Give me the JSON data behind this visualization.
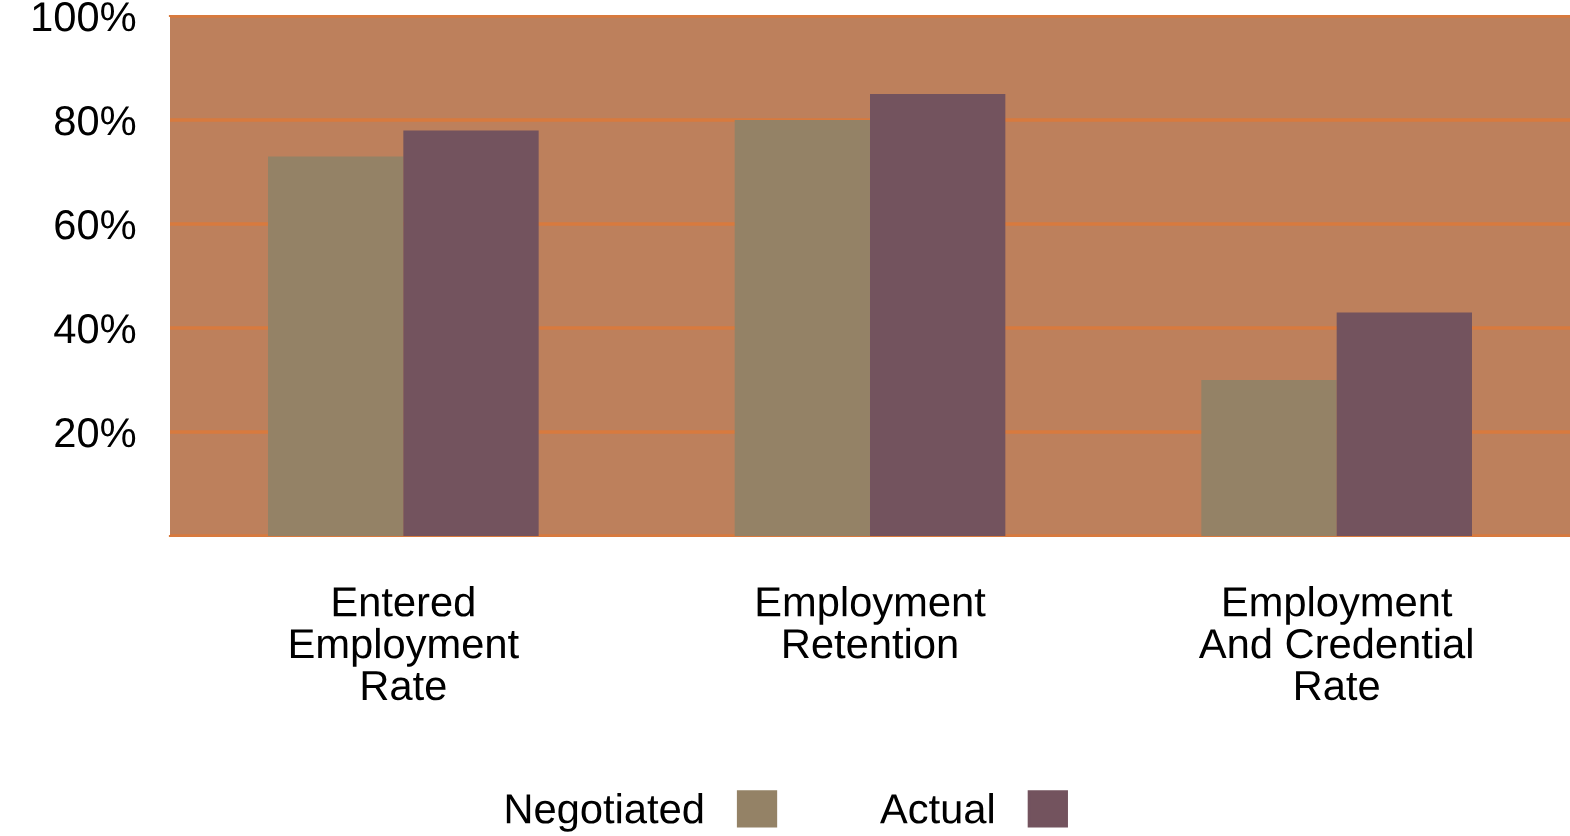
{
  "chart_data": {
    "type": "bar",
    "categories": [
      "Entered\nEmployment\nRate",
      "Employment\nRetention",
      "Employment\nAnd Credential\nRate"
    ],
    "series": [
      {
        "name": "Negotiated",
        "color": "#948266",
        "values": [
          73,
          80,
          30
        ]
      },
      {
        "name": "Actual",
        "color": "#73535e",
        "values": [
          78,
          85,
          43
        ]
      }
    ],
    "ylim": [
      0,
      100
    ],
    "yticks": [
      {
        "value": 0,
        "label": null
      },
      {
        "value": 20,
        "label": "20%"
      },
      {
        "value": 40,
        "label": "40%"
      },
      {
        "value": 60,
        "label": "60%"
      },
      {
        "value": 80,
        "label": "80%"
      },
      {
        "value": 100,
        "label": "100%"
      }
    ],
    "grid": "y",
    "legend": "bottom"
  }
}
